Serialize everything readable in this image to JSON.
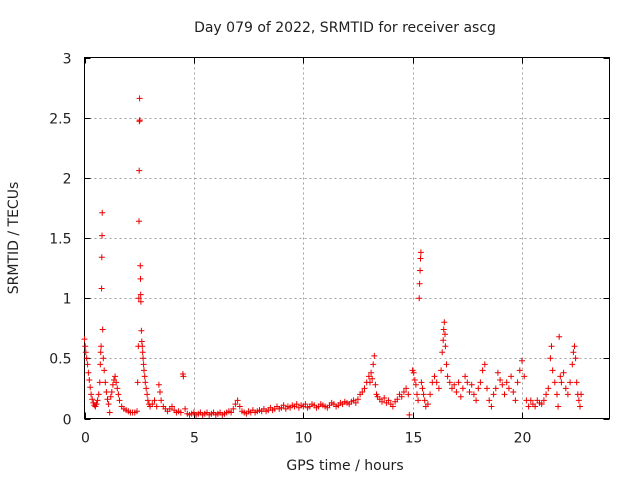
{
  "chart_data": {
    "type": "scatter",
    "title": "Day 079 of 2022, SRMTID for receiver ascg",
    "xlabel": "GPS time / hours",
    "ylabel": "SRMTID / TECUs",
    "xlim": [
      0,
      24
    ],
    "ylim": [
      0,
      3
    ],
    "x_ticks": [
      0,
      5,
      10,
      15,
      20
    ],
    "x_tick_labels": [
      "0",
      "5",
      "10",
      "15",
      "20"
    ],
    "y_ticks": [
      0,
      0.5,
      1,
      1.5,
      2,
      2.5,
      3
    ],
    "y_tick_labels": [
      "0",
      "0.5",
      "1",
      "1.5",
      "2",
      "2.5",
      "3"
    ],
    "grid": true,
    "marker": "+",
    "color": "#ee0000",
    "series": [
      {
        "name": "SRMTID",
        "points": [
          [
            0.0,
            0.66
          ],
          [
            0.03,
            0.6
          ],
          [
            0.06,
            0.55
          ],
          [
            0.1,
            0.5
          ],
          [
            0.14,
            0.45
          ],
          [
            0.18,
            0.38
          ],
          [
            0.22,
            0.32
          ],
          [
            0.26,
            0.26
          ],
          [
            0.3,
            0.2
          ],
          [
            0.35,
            0.16
          ],
          [
            0.4,
            0.13
          ],
          [
            0.45,
            0.11
          ],
          [
            0.5,
            0.1
          ],
          [
            0.55,
            0.12
          ],
          [
            0.6,
            0.15
          ],
          [
            0.65,
            0.2
          ],
          [
            0.7,
            0.3
          ],
          [
            0.72,
            0.45
          ],
          [
            0.74,
            0.55
          ],
          [
            0.76,
            0.6
          ],
          [
            0.78,
            1.08
          ],
          [
            0.79,
            1.34
          ],
          [
            0.8,
            1.52
          ],
          [
            0.81,
            1.71
          ],
          [
            0.83,
            0.74
          ],
          [
            0.86,
            0.5
          ],
          [
            0.9,
            0.4
          ],
          [
            0.95,
            0.3
          ],
          [
            1.0,
            0.22
          ],
          [
            1.05,
            0.16
          ],
          [
            1.1,
            0.12
          ],
          [
            1.15,
            0.05
          ],
          [
            1.2,
            0.18
          ],
          [
            1.25,
            0.22
          ],
          [
            1.3,
            0.28
          ],
          [
            1.35,
            0.32
          ],
          [
            1.4,
            0.35
          ],
          [
            1.45,
            0.3
          ],
          [
            1.5,
            0.25
          ],
          [
            1.55,
            0.2
          ],
          [
            1.6,
            0.15
          ],
          [
            1.7,
            0.1
          ],
          [
            1.8,
            0.08
          ],
          [
            1.9,
            0.07
          ],
          [
            2.0,
            0.06
          ],
          [
            2.1,
            0.05
          ],
          [
            2.2,
            0.05
          ],
          [
            2.3,
            0.05
          ],
          [
            2.4,
            0.06
          ],
          [
            2.43,
            0.3
          ],
          [
            2.46,
            0.6
          ],
          [
            2.48,
            1.0
          ],
          [
            2.49,
            1.64
          ],
          [
            2.5,
            2.06
          ],
          [
            2.51,
            2.47
          ],
          [
            2.52,
            2.66
          ],
          [
            2.53,
            2.48
          ],
          [
            2.55,
            1.27
          ],
          [
            2.56,
            1.16
          ],
          [
            2.57,
            1.03
          ],
          [
            2.58,
            0.97
          ],
          [
            2.6,
            0.73
          ],
          [
            2.62,
            0.64
          ],
          [
            2.64,
            0.6
          ],
          [
            2.66,
            0.55
          ],
          [
            2.68,
            0.5
          ],
          [
            2.7,
            0.45
          ],
          [
            2.72,
            0.4
          ],
          [
            2.75,
            0.35
          ],
          [
            2.78,
            0.3
          ],
          [
            2.82,
            0.25
          ],
          [
            2.86,
            0.2
          ],
          [
            2.9,
            0.15
          ],
          [
            2.95,
            0.12
          ],
          [
            3.0,
            0.1
          ],
          [
            3.1,
            0.12
          ],
          [
            3.2,
            0.15
          ],
          [
            3.3,
            0.1
          ],
          [
            3.4,
            0.28
          ],
          [
            3.45,
            0.22
          ],
          [
            3.5,
            0.15
          ],
          [
            3.6,
            0.1
          ],
          [
            3.7,
            0.08
          ],
          [
            3.8,
            0.06
          ],
          [
            3.9,
            0.08
          ],
          [
            4.0,
            0.1
          ],
          [
            4.1,
            0.07
          ],
          [
            4.2,
            0.05
          ],
          [
            4.3,
            0.06
          ],
          [
            4.4,
            0.05
          ],
          [
            4.5,
            0.37
          ],
          [
            4.52,
            0.35
          ],
          [
            4.6,
            0.08
          ],
          [
            4.7,
            0.04
          ],
          [
            4.8,
            0.03
          ],
          [
            4.9,
            0.04
          ],
          [
            5.0,
            0.05
          ],
          [
            5.1,
            0.03
          ],
          [
            5.2,
            0.04
          ],
          [
            5.3,
            0.05
          ],
          [
            5.4,
            0.03
          ],
          [
            5.5,
            0.04
          ],
          [
            5.6,
            0.05
          ],
          [
            5.7,
            0.03
          ],
          [
            5.8,
            0.04
          ],
          [
            5.9,
            0.05
          ],
          [
            6.0,
            0.03
          ],
          [
            6.1,
            0.04
          ],
          [
            6.2,
            0.05
          ],
          [
            6.3,
            0.03
          ],
          [
            6.4,
            0.04
          ],
          [
            6.5,
            0.05
          ],
          [
            6.6,
            0.06
          ],
          [
            6.7,
            0.05
          ],
          [
            6.8,
            0.08
          ],
          [
            6.9,
            0.12
          ],
          [
            7.0,
            0.15
          ],
          [
            7.1,
            0.1
          ],
          [
            7.2,
            0.06
          ],
          [
            7.3,
            0.05
          ],
          [
            7.4,
            0.04
          ],
          [
            7.5,
            0.06
          ],
          [
            7.6,
            0.05
          ],
          [
            7.7,
            0.07
          ],
          [
            7.8,
            0.05
          ],
          [
            7.9,
            0.06
          ],
          [
            8.0,
            0.07
          ],
          [
            8.1,
            0.06
          ],
          [
            8.2,
            0.08
          ],
          [
            8.3,
            0.06
          ],
          [
            8.4,
            0.07
          ],
          [
            8.5,
            0.09
          ],
          [
            8.6,
            0.07
          ],
          [
            8.7,
            0.08
          ],
          [
            8.8,
            0.1
          ],
          [
            8.9,
            0.08
          ],
          [
            9.0,
            0.09
          ],
          [
            9.1,
            0.11
          ],
          [
            9.2,
            0.08
          ],
          [
            9.3,
            0.1
          ],
          [
            9.4,
            0.09
          ],
          [
            9.5,
            0.11
          ],
          [
            9.6,
            0.1
          ],
          [
            9.7,
            0.12
          ],
          [
            9.8,
            0.09
          ],
          [
            9.9,
            0.11
          ],
          [
            10.0,
            0.1
          ],
          [
            10.1,
            0.12
          ],
          [
            10.2,
            0.09
          ],
          [
            10.3,
            0.1
          ],
          [
            10.4,
            0.12
          ],
          [
            10.5,
            0.11
          ],
          [
            10.6,
            0.09
          ],
          [
            10.7,
            0.1
          ],
          [
            10.8,
            0.12
          ],
          [
            10.9,
            0.11
          ],
          [
            11.0,
            0.1
          ],
          [
            11.1,
            0.09
          ],
          [
            11.2,
            0.11
          ],
          [
            11.3,
            0.13
          ],
          [
            11.4,
            0.12
          ],
          [
            11.5,
            0.1
          ],
          [
            11.6,
            0.11
          ],
          [
            11.7,
            0.13
          ],
          [
            11.8,
            0.12
          ],
          [
            11.9,
            0.14
          ],
          [
            12.0,
            0.13
          ],
          [
            12.1,
            0.12
          ],
          [
            12.2,
            0.14
          ],
          [
            12.3,
            0.15
          ],
          [
            12.4,
            0.13
          ],
          [
            12.5,
            0.16
          ],
          [
            12.6,
            0.2
          ],
          [
            12.7,
            0.22
          ],
          [
            12.8,
            0.25
          ],
          [
            12.9,
            0.3
          ],
          [
            13.0,
            0.35
          ],
          [
            13.05,
            0.3
          ],
          [
            13.1,
            0.38
          ],
          [
            13.15,
            0.33
          ],
          [
            13.2,
            0.45
          ],
          [
            13.25,
            0.52
          ],
          [
            13.3,
            0.28
          ],
          [
            13.35,
            0.2
          ],
          [
            13.4,
            0.18
          ],
          [
            13.5,
            0.16
          ],
          [
            13.6,
            0.14
          ],
          [
            13.7,
            0.17
          ],
          [
            13.8,
            0.13
          ],
          [
            13.9,
            0.15
          ],
          [
            14.0,
            0.12
          ],
          [
            14.1,
            0.1
          ],
          [
            14.2,
            0.14
          ],
          [
            14.3,
            0.16
          ],
          [
            14.4,
            0.2
          ],
          [
            14.5,
            0.18
          ],
          [
            14.6,
            0.22
          ],
          [
            14.7,
            0.25
          ],
          [
            14.8,
            0.2
          ],
          [
            14.85,
            0.03
          ],
          [
            15.0,
            0.4
          ],
          [
            15.05,
            0.38
          ],
          [
            15.1,
            0.32
          ],
          [
            15.15,
            0.28
          ],
          [
            15.2,
            0.2
          ],
          [
            15.25,
            0.15
          ],
          [
            15.3,
            1.0
          ],
          [
            15.32,
            1.12
          ],
          [
            15.34,
            1.23
          ],
          [
            15.36,
            1.33
          ],
          [
            15.38,
            1.38
          ],
          [
            15.4,
            0.3
          ],
          [
            15.45,
            0.25
          ],
          [
            15.5,
            0.2
          ],
          [
            15.55,
            0.15
          ],
          [
            15.6,
            0.1
          ],
          [
            15.7,
            0.12
          ],
          [
            15.8,
            0.2
          ],
          [
            15.9,
            0.3
          ],
          [
            16.0,
            0.35
          ],
          [
            16.1,
            0.3
          ],
          [
            16.2,
            0.25
          ],
          [
            16.3,
            0.4
          ],
          [
            16.35,
            0.55
          ],
          [
            16.4,
            0.65
          ],
          [
            16.42,
            0.74
          ],
          [
            16.45,
            0.8
          ],
          [
            16.48,
            0.7
          ],
          [
            16.5,
            0.6
          ],
          [
            16.55,
            0.45
          ],
          [
            16.6,
            0.35
          ],
          [
            16.7,
            0.3
          ],
          [
            16.8,
            0.25
          ],
          [
            16.9,
            0.28
          ],
          [
            17.0,
            0.22
          ],
          [
            17.1,
            0.3
          ],
          [
            17.2,
            0.18
          ],
          [
            17.3,
            0.25
          ],
          [
            17.4,
            0.35
          ],
          [
            17.5,
            0.3
          ],
          [
            17.6,
            0.22
          ],
          [
            17.7,
            0.28
          ],
          [
            17.8,
            0.2
          ],
          [
            17.9,
            0.15
          ],
          [
            18.0,
            0.25
          ],
          [
            18.1,
            0.3
          ],
          [
            18.2,
            0.4
          ],
          [
            18.3,
            0.45
          ],
          [
            18.4,
            0.25
          ],
          [
            18.5,
            0.15
          ],
          [
            18.6,
            0.1
          ],
          [
            18.7,
            0.2
          ],
          [
            18.8,
            0.25
          ],
          [
            18.9,
            0.38
          ],
          [
            19.0,
            0.32
          ],
          [
            19.1,
            0.28
          ],
          [
            19.2,
            0.2
          ],
          [
            19.3,
            0.3
          ],
          [
            19.4,
            0.25
          ],
          [
            19.5,
            0.35
          ],
          [
            19.6,
            0.22
          ],
          [
            19.7,
            0.15
          ],
          [
            19.8,
            0.3
          ],
          [
            19.9,
            0.4
          ],
          [
            20.0,
            0.48
          ],
          [
            20.1,
            0.35
          ],
          [
            20.2,
            0.15
          ],
          [
            20.3,
            0.1
          ],
          [
            20.4,
            0.15
          ],
          [
            20.5,
            0.12
          ],
          [
            20.6,
            0.1
          ],
          [
            20.7,
            0.15
          ],
          [
            20.8,
            0.13
          ],
          [
            20.9,
            0.12
          ],
          [
            21.0,
            0.15
          ],
          [
            21.1,
            0.2
          ],
          [
            21.2,
            0.25
          ],
          [
            21.3,
            0.5
          ],
          [
            21.35,
            0.6
          ],
          [
            21.4,
            0.4
          ],
          [
            21.5,
            0.3
          ],
          [
            21.6,
            0.2
          ],
          [
            21.65,
            0.1
          ],
          [
            21.7,
            0.68
          ],
          [
            21.75,
            0.35
          ],
          [
            21.8,
            0.3
          ],
          [
            21.9,
            0.38
          ],
          [
            22.0,
            0.25
          ],
          [
            22.1,
            0.2
          ],
          [
            22.2,
            0.3
          ],
          [
            22.3,
            0.45
          ],
          [
            22.35,
            0.55
          ],
          [
            22.4,
            0.6
          ],
          [
            22.45,
            0.5
          ],
          [
            22.5,
            0.3
          ],
          [
            22.55,
            0.2
          ],
          [
            22.6,
            0.15
          ],
          [
            22.65,
            0.1
          ],
          [
            22.7,
            0.2
          ]
        ]
      }
    ]
  }
}
